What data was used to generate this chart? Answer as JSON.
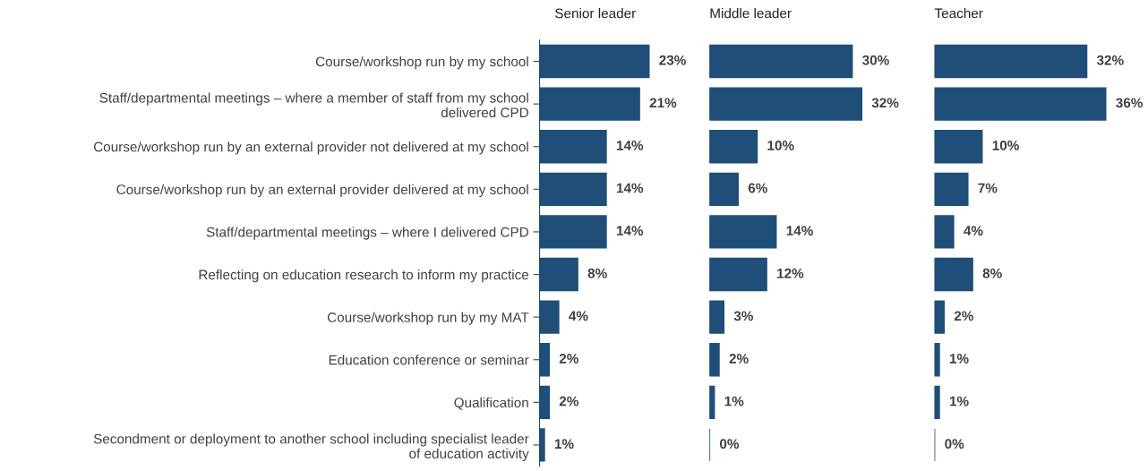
{
  "chart_data": [
    {
      "type": "bar",
      "orientation": "horizontal",
      "title": "Senior leader",
      "tick_labels": "y",
      "color": "#1f4e79",
      "categories": [
        "Course/workshop run by my school",
        "Staff/departmental meetings – where a member of staff from my school delivered CPD",
        "Course/workshop run by an external provider not delivered at my school",
        "Course/workshop run by an external provider delivered at my school",
        "Staff/departmental meetings – where I delivered CPD",
        "Reflecting on education research to inform my practice",
        "Course/workshop run by my MAT",
        "Education conference or seminar",
        "Qualification",
        "Secondment or deployment to another school including specialist leader of education activity"
      ],
      "values": [
        23,
        21,
        14,
        14,
        14,
        8,
        4,
        2,
        2,
        1
      ],
      "value_labels": [
        "23%",
        "21%",
        "14%",
        "14%",
        "14%",
        "8%",
        "4%",
        "2%",
        "2%",
        "1%"
      ]
    },
    {
      "type": "bar",
      "orientation": "horizontal",
      "title": "Middle leader",
      "tick_labels": false,
      "color": "#1f4e79",
      "categories": [
        null,
        null,
        null,
        null,
        null,
        null,
        null,
        null,
        null,
        null
      ],
      "values": [
        30,
        32,
        10,
        6,
        14,
        12,
        3,
        2,
        1,
        0
      ],
      "value_labels": [
        "30%",
        "32%",
        "10%",
        "6%",
        "14%",
        "12%",
        "3%",
        "2%",
        "1%",
        "0%"
      ]
    },
    {
      "type": "bar",
      "orientation": "horizontal",
      "title": "Teacher",
      "tick_labels": false,
      "color": "#1f4e79",
      "categories": [
        null,
        null,
        null,
        null,
        null,
        null,
        null,
        null,
        null,
        null
      ],
      "values": [
        32,
        36,
        10,
        7,
        4,
        8,
        2,
        1,
        1,
        0
      ],
      "value_labels": [
        "32%",
        "36%",
        "10%",
        "7%",
        "4%",
        "8%",
        "2%",
        "1%",
        "1%",
        "0%"
      ]
    }
  ]
}
